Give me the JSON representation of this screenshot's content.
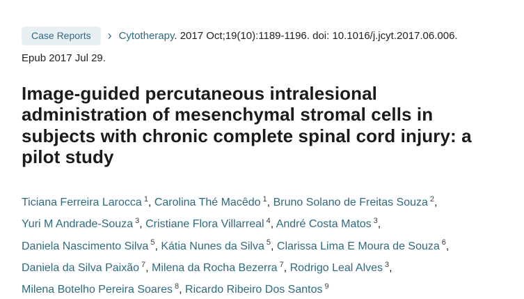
{
  "colors": {
    "background": "#ffffff",
    "text": "#212121",
    "title": "#1b1b1b",
    "link": "#2f6a80",
    "badge_bg": "#e8f0f4",
    "superscript": "#3d3d3d"
  },
  "citation": {
    "badge": "Case Reports",
    "chevron": "›",
    "journal": "Cytotherapy",
    "details": ". 2017 Oct;19(10):1189-1196. doi: 10.1016/j.jcyt.2017.06.006.",
    "epub": "Epub 2017 Jul 29."
  },
  "title": "Image-guided percutaneous intralesional administration of mesenchymal stromal cells in subjects with chronic complete spinal cord injury: a pilot study",
  "authors": [
    {
      "name": "Ticiana Ferreira Larocca",
      "affiliation": "1"
    },
    {
      "name": "Carolina Thé Macêdo",
      "affiliation": "1"
    },
    {
      "name": "Bruno Solano de Freitas Souza",
      "affiliation": "2"
    },
    {
      "name": "Yuri M Andrade-Souza",
      "affiliation": "3"
    },
    {
      "name": "Cristiane Flora Villarreal",
      "affiliation": "4"
    },
    {
      "name": "André Costa Matos",
      "affiliation": "3"
    },
    {
      "name": "Daniela Nascimento Silva",
      "affiliation": "5"
    },
    {
      "name": "Kátia Nunes da Silva",
      "affiliation": "5"
    },
    {
      "name": "Clarissa Lima E Moura de Souza",
      "affiliation": "6"
    },
    {
      "name": "Daniela da Silva Paixão",
      "affiliation": "7"
    },
    {
      "name": "Milena da Rocha Bezerra",
      "affiliation": "7"
    },
    {
      "name": "Rodrigo Leal Alves",
      "affiliation": "3"
    },
    {
      "name": "Milena Botelho Pereira Soares",
      "affiliation": "8"
    },
    {
      "name": "Ricardo Ribeiro Dos Santos",
      "affiliation": "9"
    }
  ]
}
